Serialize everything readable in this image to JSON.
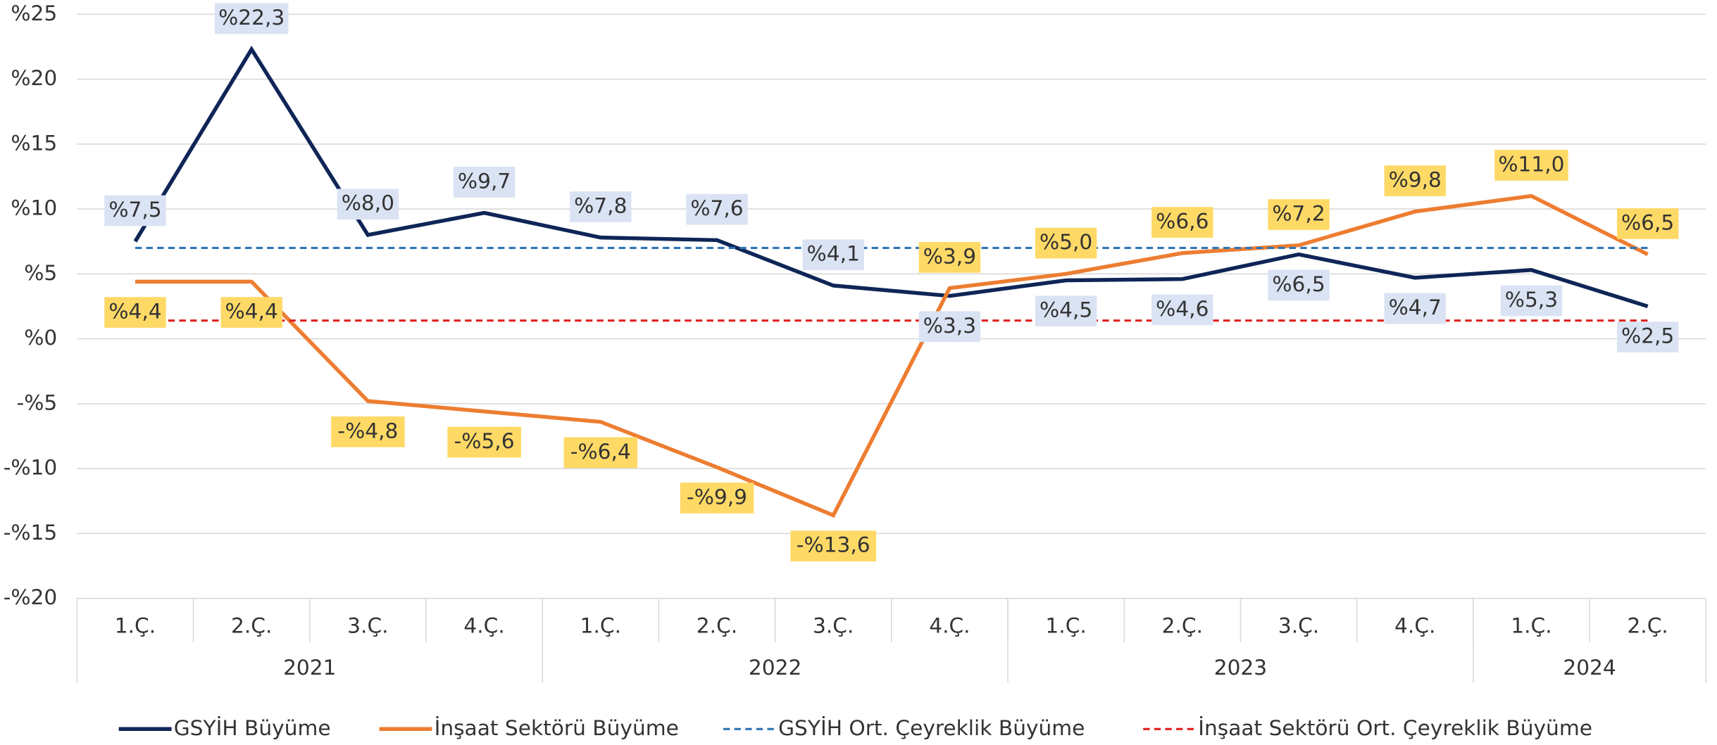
{
  "chart_data": {
    "type": "line",
    "categories": [
      "1.Ç.",
      "2.Ç.",
      "3.Ç.",
      "4.Ç.",
      "1.Ç.",
      "2.Ç.",
      "3.Ç.",
      "4.Ç.",
      "1.Ç.",
      "2.Ç.",
      "3.Ç.",
      "4.Ç.",
      "1.Ç.",
      "2.Ç."
    ],
    "groups": [
      {
        "label": "2021",
        "span": 4
      },
      {
        "label": "2022",
        "span": 4
      },
      {
        "label": "2023",
        "span": 4
      },
      {
        "label": "2024",
        "span": 2
      }
    ],
    "ylim": [
      -20,
      25
    ],
    "yticks": [
      {
        "value": -20,
        "label": "-%20"
      },
      {
        "value": -15,
        "label": "-%15"
      },
      {
        "value": -10,
        "label": "-%10"
      },
      {
        "value": -5,
        "label": "-%5"
      },
      {
        "value": 0,
        "label": "%0"
      },
      {
        "value": 5,
        "label": "%5"
      },
      {
        "value": 10,
        "label": "%10"
      },
      {
        "value": 15,
        "label": "%15"
      },
      {
        "value": 20,
        "label": "%20"
      },
      {
        "value": 25,
        "label": "%25"
      }
    ],
    "grid": true,
    "legend": "bottom",
    "series": [
      {
        "name": "GSYİH Büyüme",
        "color": "#0f2557",
        "label_color": "#dae3f3",
        "values": [
          7.5,
          22.3,
          8.0,
          9.7,
          7.8,
          7.6,
          4.1,
          3.3,
          4.5,
          4.6,
          6.5,
          4.7,
          5.3,
          2.5
        ],
        "value_labels": [
          "%7,5",
          "%22,3",
          "%8,0",
          "%9,7",
          "%7,8",
          "%7,6",
          "%4,1",
          "%3,3",
          "%4,5",
          "%4,6",
          "%6,5",
          "%4,7",
          "%5,3",
          "%2,5"
        ]
      },
      {
        "name": "İnşaat Sektörü Büyüme",
        "color": "#ed7d31",
        "label_color": "#ffd966",
        "values": [
          4.4,
          4.4,
          -4.8,
          -5.6,
          -6.4,
          -9.9,
          -13.6,
          3.9,
          5.0,
          6.6,
          7.2,
          9.8,
          11.0,
          6.5
        ],
        "value_labels": [
          "%4,4",
          "%4,4",
          "-%4,8",
          "-%5,6",
          "-%6,4",
          "-%9,9",
          "-%13,6",
          "%3,9",
          "%5,0",
          "%6,6",
          "%7,2",
          "%9,8",
          "%11,0",
          "%6,5"
        ]
      },
      {
        "name": "GSYİH Ort. Çeyreklik Büyüme",
        "color": "#2e75b6",
        "dashed": true,
        "values": [
          7.0,
          7.0,
          7.0,
          7.0,
          7.0,
          7.0,
          7.0,
          7.0,
          7.0,
          7.0,
          7.0,
          7.0,
          7.0,
          7.0
        ]
      },
      {
        "name": "İnşaat Sektörü Ort. Çeyreklik Büyüme",
        "color": "#e02020",
        "dashed": true,
        "values": [
          1.4,
          1.4,
          1.4,
          1.4,
          1.4,
          1.4,
          1.4,
          1.4,
          1.4,
          1.4,
          1.4,
          1.4,
          1.4,
          1.4
        ]
      }
    ]
  }
}
